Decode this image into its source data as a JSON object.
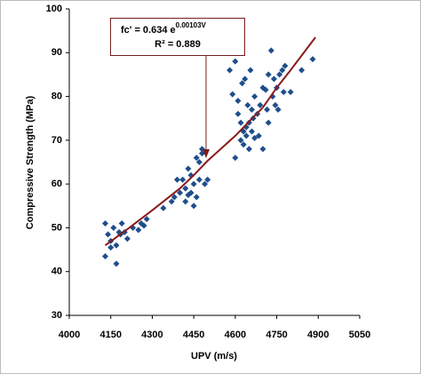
{
  "chart_data": {
    "type": "scatter",
    "x_label": "UPV  (m/s)",
    "y_label": "Compressive Strength (MPa)",
    "annotation": {
      "text": "fc' = 0.634 e",
      "superscript": "0.00103V",
      "r2": "R² = 0.889"
    },
    "xlim": [
      4000,
      5050
    ],
    "xticks": [
      4000,
      4150,
      4300,
      4450,
      4600,
      4750,
      4900,
      5050
    ],
    "ylim": [
      30,
      100
    ],
    "yticks": [
      30,
      40,
      50,
      60,
      70,
      80,
      90,
      100
    ],
    "series": [
      {
        "name": "data",
        "color": "#1f4e8c",
        "x": [
          4130,
          4130,
          4140,
          4150,
          4150,
          4160,
          4170,
          4170,
          4180,
          4185,
          4190,
          4200,
          4210,
          4230,
          4250,
          4260,
          4270,
          4280,
          4340,
          4370,
          4380,
          4390,
          4400,
          4410,
          4420,
          4420,
          4430,
          4430,
          4440,
          4440,
          4450,
          4450,
          4460,
          4460,
          4470,
          4470,
          4480,
          4480,
          4490,
          4500,
          4580,
          4590,
          4600,
          4600,
          4610,
          4610,
          4620,
          4620,
          4625,
          4630,
          4630,
          4635,
          4640,
          4640,
          4645,
          4650,
          4650,
          4655,
          4660,
          4660,
          4665,
          4670,
          4670,
          4680,
          4685,
          4690,
          4700,
          4700,
          4710,
          4715,
          4720,
          4720,
          4730,
          4735,
          4740,
          4745,
          4750,
          4755,
          4760,
          4770,
          4775,
          4780,
          4800,
          4840,
          4880
        ],
        "values": [
          51,
          43.5,
          48.5,
          47,
          45.5,
          50,
          46,
          41.8,
          49,
          48.5,
          51,
          49,
          47.5,
          50,
          49.5,
          51,
          50.5,
          52,
          54.5,
          56,
          57,
          61,
          58,
          61,
          56,
          59,
          57.5,
          63.5,
          58,
          62,
          55,
          60,
          57,
          66,
          65,
          61,
          67,
          68,
          60,
          61,
          86,
          80.5,
          66,
          88,
          76,
          79,
          70,
          74,
          83,
          69,
          72,
          84,
          73,
          71,
          78,
          68,
          74,
          86,
          72,
          77,
          75,
          70.5,
          80,
          76,
          71,
          78,
          82,
          68,
          81.5,
          77,
          85,
          74,
          90.5,
          80,
          84,
          78,
          82,
          77,
          85,
          86,
          81,
          87,
          81,
          86,
          88.5
        ]
      },
      {
        "name": "trendline",
        "color": "#8b1a1a",
        "x": [
          4130,
          4200,
          4300,
          4400,
          4450,
          4500,
          4600,
          4700,
          4750,
          4800,
          4890
        ],
        "values": [
          46,
          49.2,
          54,
          59,
          62,
          65.3,
          71,
          77.5,
          82,
          86,
          93.5
        ]
      }
    ]
  }
}
